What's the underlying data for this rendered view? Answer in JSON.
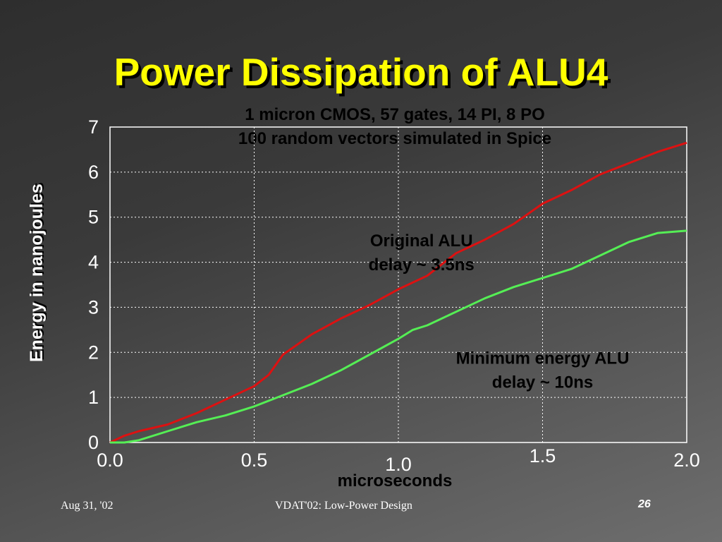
{
  "slide": {
    "title": "Power Dissipation of ALU4",
    "subtitle_line1": "1 micron CMOS, 57 gates, 14 PI, 8 PO",
    "subtitle_line2": "100 random vectors simulated in Spice",
    "footer_date": "Aug 31, '02",
    "footer_center": "VDAT'02: Low-Power Design",
    "page_number": "26"
  },
  "chart_data": {
    "type": "line",
    "title": "",
    "xlabel": "microseconds",
    "ylabel": "Energy in nanojoules",
    "xlim": [
      0,
      2
    ],
    "ylim": [
      0,
      7
    ],
    "grid": true,
    "x_tick_labels": [
      "0.0",
      "0.5",
      "1.0",
      "1.5",
      "2.0"
    ],
    "y_tick_labels": [
      "0",
      "1",
      "2",
      "3",
      "4",
      "5",
      "6",
      "7"
    ],
    "series": [
      {
        "name": "Original ALU",
        "color": "#dd1111",
        "x": [
          0.0,
          0.05,
          0.1,
          0.2,
          0.3,
          0.4,
          0.5,
          0.55,
          0.6,
          0.7,
          0.8,
          0.9,
          1.0,
          1.1,
          1.2,
          1.3,
          1.4,
          1.5,
          1.6,
          1.7,
          1.8,
          1.9,
          2.0
        ],
        "values": [
          0.0,
          0.15,
          0.25,
          0.4,
          0.65,
          0.95,
          1.25,
          1.5,
          1.95,
          2.4,
          2.75,
          3.05,
          3.4,
          3.7,
          4.2,
          4.5,
          4.85,
          5.3,
          5.6,
          5.95,
          6.2,
          6.45,
          6.65
        ]
      },
      {
        "name": "Minimum energy ALU",
        "color": "#55ee55",
        "x": [
          0.0,
          0.05,
          0.1,
          0.2,
          0.3,
          0.4,
          0.5,
          0.6,
          0.7,
          0.8,
          0.9,
          1.0,
          1.05,
          1.1,
          1.2,
          1.3,
          1.4,
          1.5,
          1.6,
          1.7,
          1.8,
          1.9,
          2.0
        ],
        "values": [
          0.0,
          0.0,
          0.05,
          0.25,
          0.45,
          0.6,
          0.8,
          1.05,
          1.3,
          1.6,
          1.95,
          2.3,
          2.5,
          2.6,
          2.9,
          3.2,
          3.45,
          3.65,
          3.85,
          4.15,
          4.45,
          4.65,
          4.7
        ]
      }
    ],
    "annotations": [
      {
        "lines": [
          "Original ALU",
          "delay ~ 3.5ns"
        ],
        "x": 1.08,
        "y": 4.35
      },
      {
        "lines": [
          "Minimum energy ALU",
          "delay ~ 10ns"
        ],
        "x": 1.5,
        "y": 1.75
      }
    ]
  }
}
